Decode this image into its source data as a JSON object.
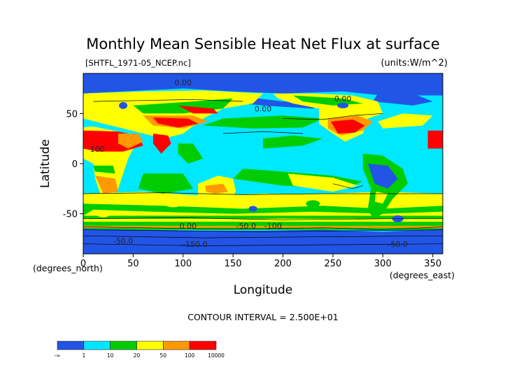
{
  "chart_data": {
    "type": "heatmap",
    "title": "Monthly Mean Sensible Heat Net Flux at surface",
    "file_label": "[SHTFL_1971-05_NCEP.nc]",
    "units_label": "(units:W/m^2)",
    "xlabel": "Longitude",
    "xlabel_units": "(degrees_east)",
    "ylabel": "Latitude",
    "ylabel_units": "(degrees_north)",
    "xlim": [
      0,
      360
    ],
    "ylim": [
      -90,
      90
    ],
    "x_ticks": [
      "0",
      "50",
      "100",
      "150",
      "200",
      "250",
      "300",
      "350"
    ],
    "x_tick_values": [
      0,
      50,
      100,
      150,
      200,
      250,
      300,
      350
    ],
    "y_ticks": [
      "50",
      "0",
      "-50"
    ],
    "y_tick_values": [
      50,
      0,
      -50
    ],
    "contour_interval_label": "CONTOUR INTERVAL = 2.500E+01",
    "contour_labels": [
      {
        "text": "0.00",
        "lon": 100,
        "lat": 78
      },
      {
        "text": "0.00",
        "lon": 180,
        "lat": 52
      },
      {
        "text": "0.00",
        "lon": 260,
        "lat": 62
      },
      {
        "text": "0.00",
        "lon": 105,
        "lat": -65
      },
      {
        "text": "-50.0",
        "lon": 163,
        "lat": -65
      },
      {
        "text": "-100",
        "lon": 190,
        "lat": -65
      },
      {
        "text": "-50.0",
        "lon": 40,
        "lat": -80
      },
      {
        "text": "-150.0",
        "lon": 112,
        "lat": -83
      },
      {
        "text": "-50.0",
        "lon": 315,
        "lat": -83
      },
      {
        "text": "100",
        "lon": 14,
        "lat": 12
      }
    ],
    "legend": {
      "tick_labels": [
        "-∞",
        "1",
        "10",
        "20",
        "50",
        "100",
        "10000"
      ],
      "bins": [
        {
          "range": "-inf to 1",
          "color": "#2255e6"
        },
        {
          "range": "1 to 10",
          "color": "#00e8ff"
        },
        {
          "range": "10 to 20",
          "color": "#00cc00"
        },
        {
          "range": "20 to 50",
          "color": "#ffff00"
        },
        {
          "range": "50 to 100",
          "color": "#ff9900"
        },
        {
          "range": "100 to 10000",
          "color": "#ff0000"
        }
      ]
    },
    "grid": false
  },
  "colors": {
    "ocean_base": "#00e8ff",
    "antarctic": "#2255e6",
    "background": "#ffffff"
  }
}
